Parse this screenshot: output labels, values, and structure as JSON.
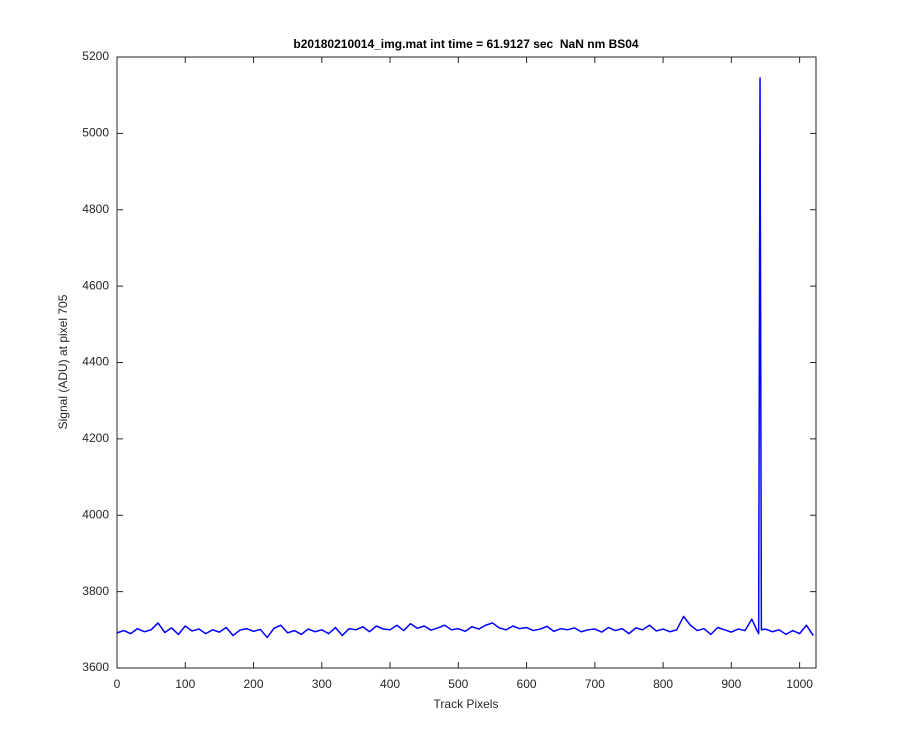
{
  "chart_data": {
    "type": "line",
    "title": "b20180210014_img.mat int time = 61.9127 sec  NaN nm BS04",
    "x_label": "Track Pixels",
    "y_label": "Signal (ADU) at pixel 705",
    "xlim": [
      0,
      1024
    ],
    "ylim": [
      3600,
      5200
    ],
    "xticks": [
      0,
      100,
      200,
      300,
      400,
      500,
      600,
      700,
      800,
      900,
      1000
    ],
    "yticks": [
      3600,
      3800,
      4000,
      4200,
      4400,
      4600,
      4800,
      5000,
      5200
    ],
    "grid": false,
    "series": [
      {
        "color": "#0000ff",
        "x": [
          0,
          10,
          20,
          30,
          40,
          50,
          60,
          70,
          80,
          90,
          100,
          110,
          120,
          130,
          140,
          150,
          160,
          170,
          180,
          190,
          200,
          210,
          220,
          230,
          240,
          250,
          260,
          270,
          280,
          290,
          300,
          310,
          320,
          330,
          340,
          350,
          360,
          370,
          380,
          390,
          400,
          410,
          420,
          430,
          440,
          450,
          460,
          470,
          480,
          490,
          500,
          510,
          520,
          530,
          540,
          550,
          560,
          570,
          580,
          590,
          600,
          610,
          620,
          630,
          640,
          650,
          660,
          670,
          680,
          690,
          700,
          710,
          720,
          730,
          740,
          750,
          760,
          770,
          780,
          790,
          800,
          810,
          820,
          830,
          840,
          850,
          860,
          870,
          880,
          890,
          900,
          910,
          920,
          930,
          937,
          940,
          942,
          944,
          950,
          960,
          970,
          980,
          990,
          1000,
          1010,
          1020
        ],
        "values": [
          3692,
          3698,
          3690,
          3703,
          3695,
          3700,
          3718,
          3693,
          3705,
          3688,
          3710,
          3697,
          3702,
          3690,
          3700,
          3694,
          3706,
          3685,
          3699,
          3703,
          3696,
          3701,
          3680,
          3704,
          3712,
          3692,
          3698,
          3688,
          3702,
          3695,
          3700,
          3690,
          3706,
          3685,
          3703,
          3700,
          3708,
          3695,
          3710,
          3702,
          3700,
          3712,
          3698,
          3716,
          3704,
          3710,
          3699,
          3705,
          3712,
          3700,
          3703,
          3696,
          3708,
          3702,
          3712,
          3718,
          3705,
          3700,
          3710,
          3703,
          3706,
          3698,
          3702,
          3709,
          3696,
          3703,
          3700,
          3705,
          3695,
          3700,
          3702,
          3694,
          3706,
          3698,
          3703,
          3690,
          3705,
          3700,
          3712,
          3697,
          3702,
          3695,
          3700,
          3735,
          3712,
          3698,
          3703,
          3688,
          3706,
          3700,
          3694,
          3702,
          3698,
          3728,
          3700,
          3690,
          5145,
          3700,
          3702,
          3695,
          3700,
          3688,
          3698,
          3690,
          3712,
          3685
        ]
      }
    ]
  }
}
